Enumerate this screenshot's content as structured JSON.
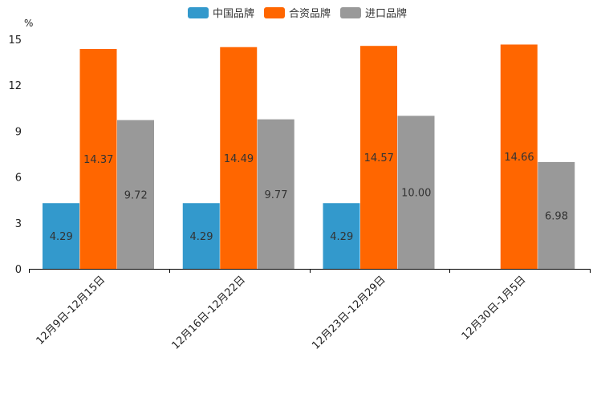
{
  "chart_data": {
    "type": "bar",
    "unit": "%",
    "categories": [
      "12月9日-12月15日",
      "12月16日-12月22日",
      "12月23日-12月29日",
      "12月30日-1月5日"
    ],
    "series": [
      {
        "name": "中国品牌",
        "color": "#3399cc",
        "values": [
          4.29,
          4.29,
          4.29,
          null
        ],
        "labels": [
          "4.29",
          "4.29",
          "4.29",
          ""
        ]
      },
      {
        "name": "合资品牌",
        "color": "#ff6600",
        "values": [
          14.37,
          14.49,
          14.57,
          14.66
        ],
        "labels": [
          "14.37",
          "14.49",
          "14.57",
          "14.66"
        ]
      },
      {
        "name": "进口品牌",
        "color": "#999999",
        "values": [
          9.72,
          9.77,
          10.0,
          6.98
        ],
        "labels": [
          "9.72",
          "9.77",
          "10.00",
          "6.98"
        ]
      }
    ],
    "yticks": [
      0,
      3,
      6,
      9,
      12,
      15
    ],
    "ylim": [
      0,
      15
    ],
    "legend_position": "top-center"
  }
}
